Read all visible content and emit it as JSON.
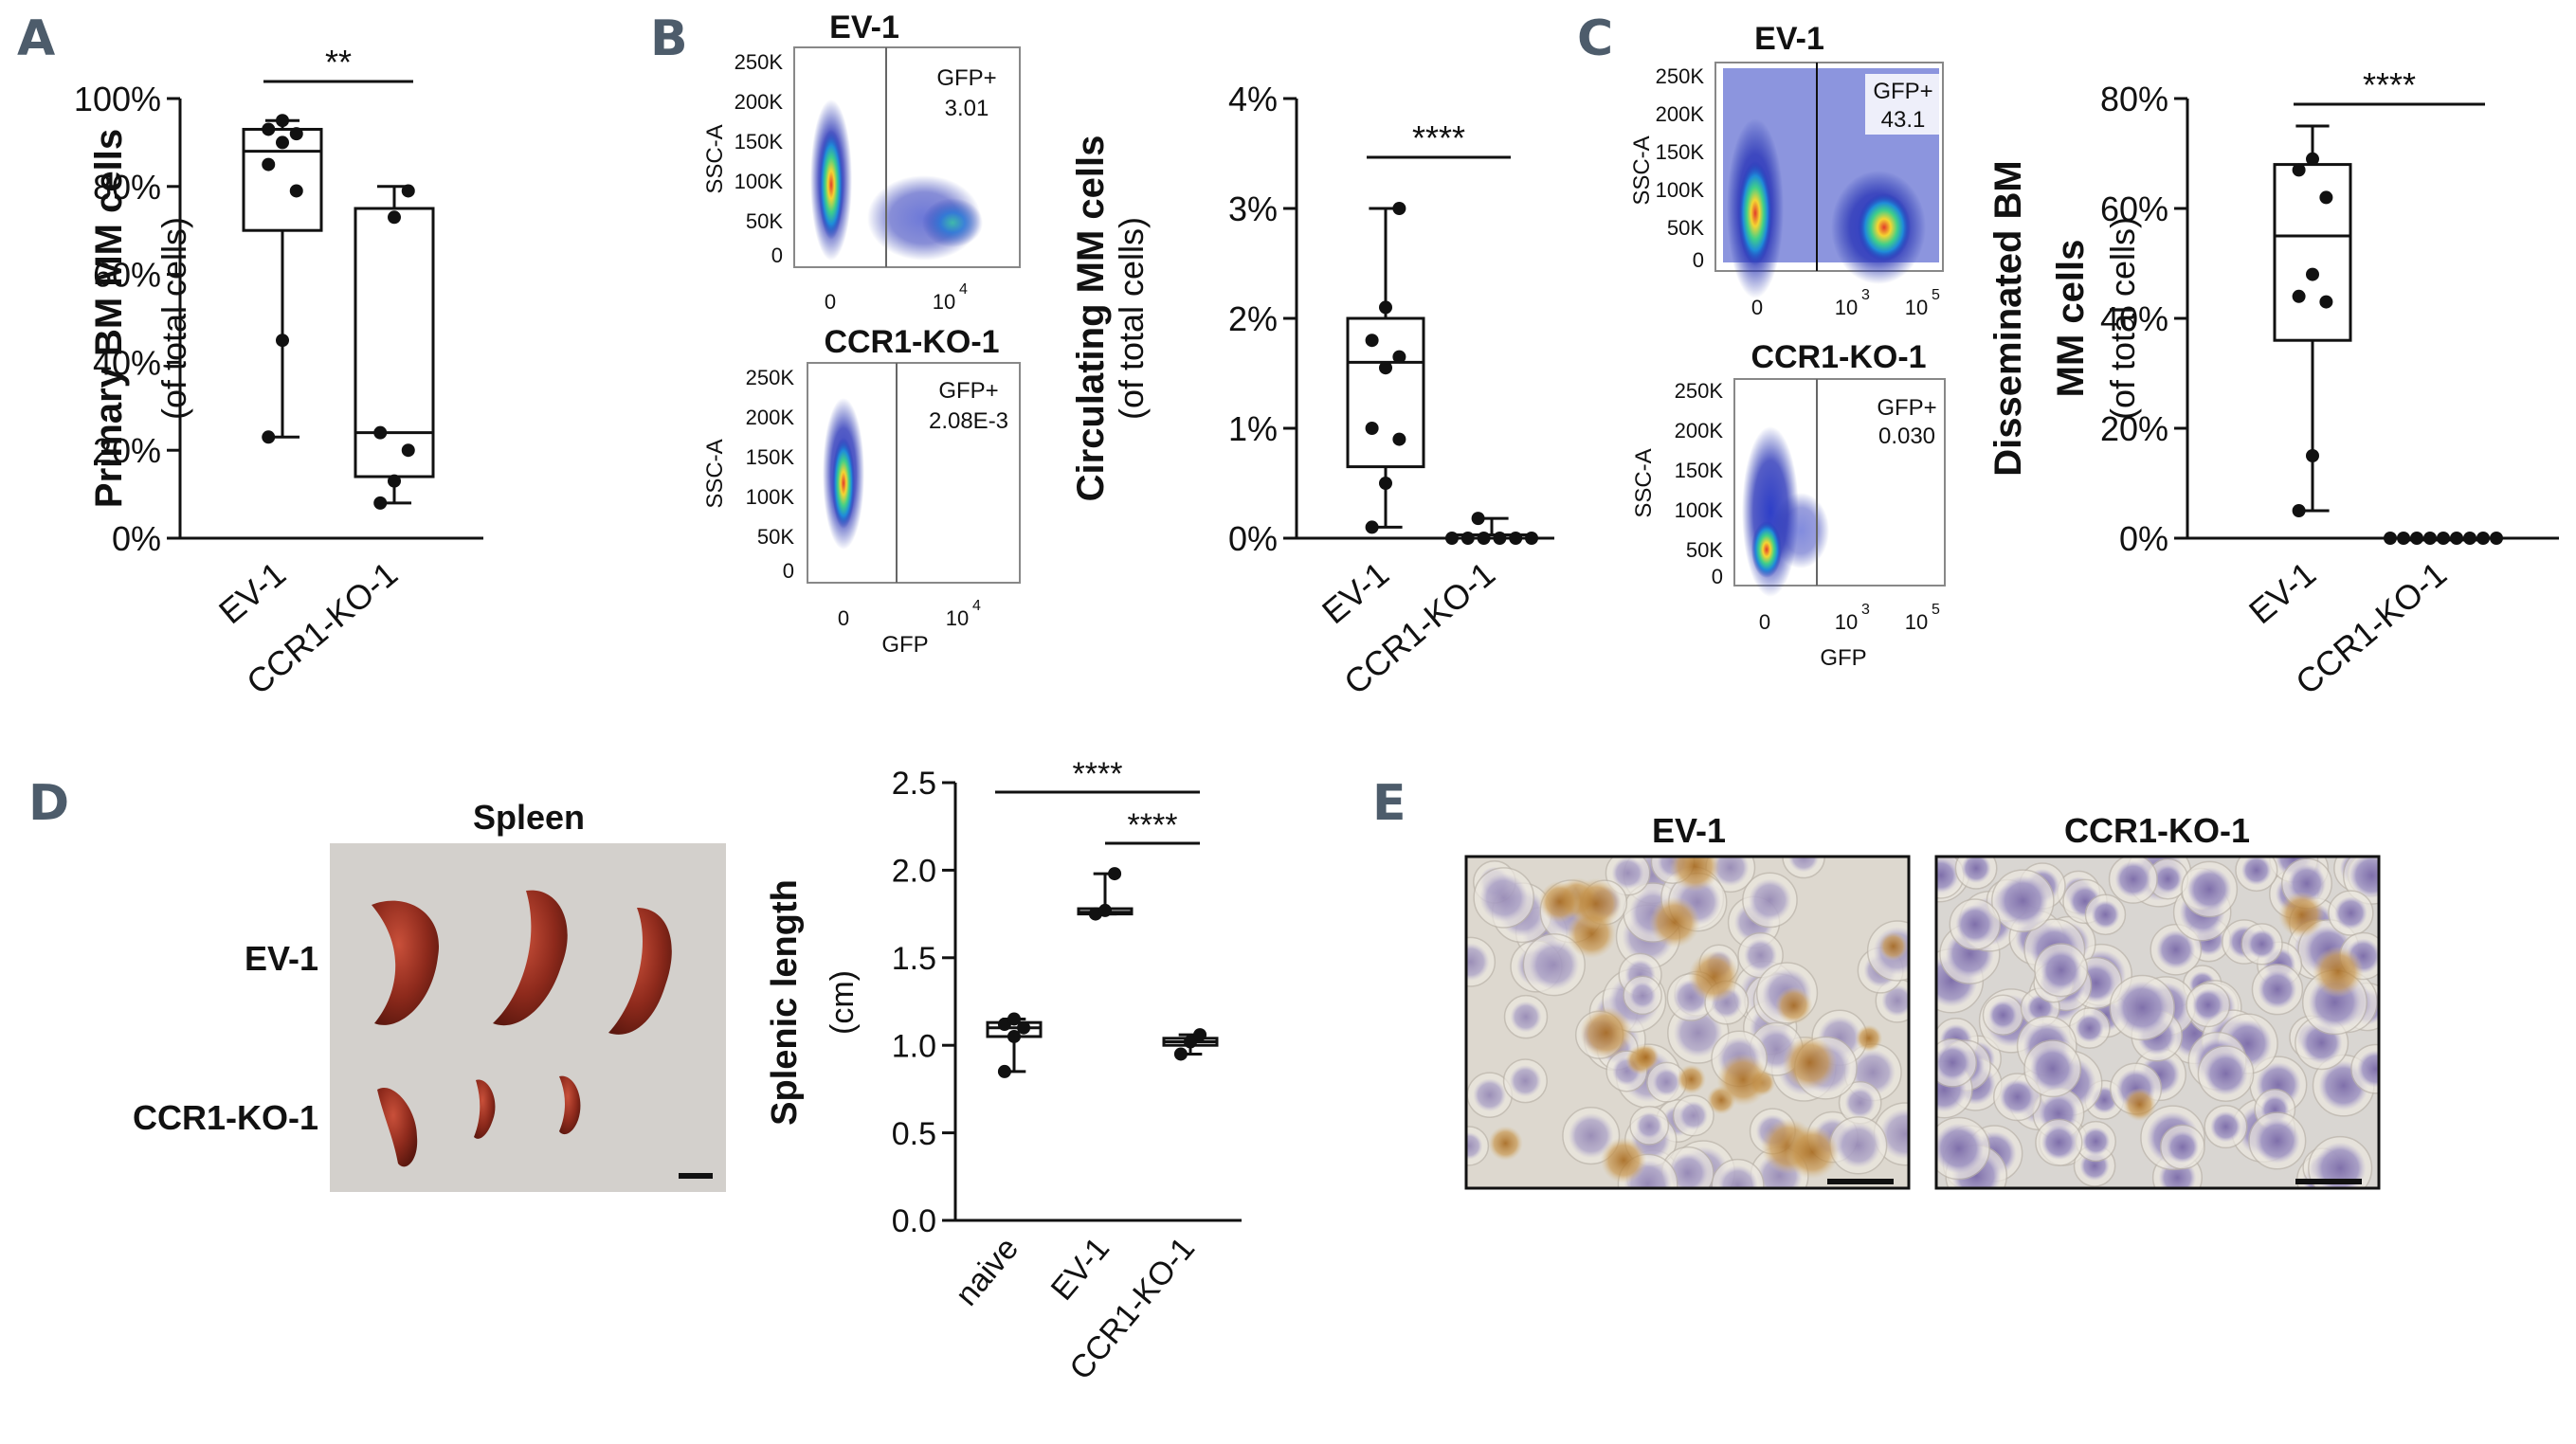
{
  "panels": {
    "A": {
      "letter": "A"
    },
    "B": {
      "letter": "B",
      "flow_ev_title": "EV-1",
      "flow_ko_title": "CCR1-KO-1"
    },
    "C": {
      "letter": "C",
      "flow_ev_title": "EV-1",
      "flow_ko_title": "CCR1-KO-1"
    },
    "D": {
      "letter": "D",
      "photo_title": "Spleen",
      "row_ev": "EV-1",
      "row_ko": "CCR1-KO-1"
    },
    "E": {
      "letter": "E",
      "ev_title": "EV-1",
      "ko_title": "CCR1-KO-1"
    }
  },
  "flow": {
    "B_ev": {
      "gate": "GFP+",
      "value": "3.01",
      "ylabel": "SSC-A",
      "yticks": [
        "250K",
        "200K",
        "150K",
        "100K",
        "50K",
        "0"
      ],
      "xticks": [
        "0",
        "10"
      ],
      "xexp": "4"
    },
    "B_ko": {
      "gate": "GFP+",
      "value": "2.08E-3",
      "ylabel": "SSC-A",
      "xlabel": "GFP",
      "yticks": [
        "250K",
        "200K",
        "150K",
        "100K",
        "50K",
        "0"
      ],
      "xticks": [
        "0",
        "10"
      ],
      "xexp": "4"
    },
    "C_ev": {
      "gate": "GFP+",
      "value": "43.1",
      "ylabel": "SSC-A",
      "yticks": [
        "250K",
        "200K",
        "150K",
        "100K",
        "50K",
        "0"
      ],
      "xticks": [
        "0",
        "10",
        "10"
      ],
      "xexp": [
        "3",
        "5"
      ]
    },
    "C_ko": {
      "gate": "GFP+",
      "value": "0.030",
      "ylabel": "SSC-A",
      "xlabel": "GFP",
      "yticks": [
        "250K",
        "200K",
        "150K",
        "100K",
        "50K",
        "0"
      ],
      "xticks": [
        "0",
        "10",
        "10"
      ],
      "xexp": [
        "3",
        "5"
      ]
    }
  },
  "chart_data": [
    {
      "id": "A",
      "type": "box",
      "ylabel": "Primary BM MM cells",
      "ylabel2": "(of total cells)",
      "ylim": [
        0,
        100
      ],
      "yticks": [
        "0%",
        "20%",
        "40%",
        "60%",
        "80%",
        "100%"
      ],
      "categories": [
        "EV-1",
        "CCR1-KO-1"
      ],
      "significance": "**",
      "boxes": [
        {
          "min": 23,
          "q1": 70,
          "median": 88,
          "q3": 93,
          "max": 95,
          "points": [
            23,
            45,
            79,
            85,
            90,
            92,
            93,
            95
          ]
        },
        {
          "min": 8,
          "q1": 14,
          "median": 24,
          "q3": 75,
          "max": 80,
          "points": [
            8,
            13,
            20,
            24,
            73,
            79
          ]
        }
      ]
    },
    {
      "id": "B",
      "type": "box",
      "ylabel": "Circulating MM cells",
      "ylabel2": "(of total cells)",
      "ylim": [
        0,
        4
      ],
      "yticks": [
        "0%",
        "1%",
        "2%",
        "3%",
        "4%"
      ],
      "categories": [
        "EV-1",
        "CCR1-KO-1"
      ],
      "significance": "****",
      "boxes": [
        {
          "min": 0.1,
          "q1": 0.65,
          "median": 1.6,
          "q3": 2.0,
          "max": 3.0,
          "points": [
            0.1,
            0.5,
            0.9,
            1.0,
            1.55,
            1.65,
            1.8,
            2.1,
            3.0
          ]
        },
        {
          "min": 0,
          "q1": 0,
          "median": 0,
          "q3": 0.03,
          "max": 0.18,
          "points": [
            0,
            0,
            0,
            0,
            0,
            0,
            0.18
          ]
        }
      ]
    },
    {
      "id": "C",
      "type": "box",
      "ylabel": "Disseminated BM",
      "ylabel2": "MM cells",
      "ylabel3": "(of total cells)",
      "ylim": [
        0,
        80
      ],
      "yticks": [
        "0%",
        "20%",
        "40%",
        "60%",
        "80%"
      ],
      "categories": [
        "EV-1",
        "CCR1-KO-1"
      ],
      "significance": "****",
      "boxes": [
        {
          "min": 5,
          "q1": 36,
          "median": 55,
          "q3": 68,
          "max": 75,
          "points": [
            5,
            15,
            43,
            44,
            48,
            62,
            67,
            69
          ]
        },
        {
          "min": 0,
          "q1": 0,
          "median": 0,
          "q3": 0,
          "max": 0,
          "points": [
            0,
            0,
            0,
            0,
            0,
            0,
            0,
            0,
            0
          ]
        }
      ]
    },
    {
      "id": "D",
      "type": "box",
      "ylabel": "Splenic length",
      "ylabel2": "(cm)",
      "ylim": [
        0,
        2.5
      ],
      "yticks": [
        "0.0",
        "0.5",
        "1.0",
        "1.5",
        "2.0",
        "2.5"
      ],
      "categories": [
        "naive",
        "EV-1",
        "CCR1-KO-1"
      ],
      "significance": [
        "****",
        "****"
      ],
      "boxes": [
        {
          "min": 0.85,
          "q1": 1.05,
          "median": 1.1,
          "q3": 1.13,
          "max": 1.15,
          "points": [
            0.85,
            1.05,
            1.1,
            1.12,
            1.15
          ]
        },
        {
          "min": 1.75,
          "q1": 1.75,
          "median": 1.76,
          "q3": 1.78,
          "max": 1.98,
          "points": [
            1.75,
            1.77,
            1.98
          ]
        },
        {
          "min": 0.95,
          "q1": 1.0,
          "median": 1.02,
          "q3": 1.04,
          "max": 1.06,
          "points": [
            0.95,
            1.02,
            1.06
          ]
        }
      ]
    }
  ]
}
